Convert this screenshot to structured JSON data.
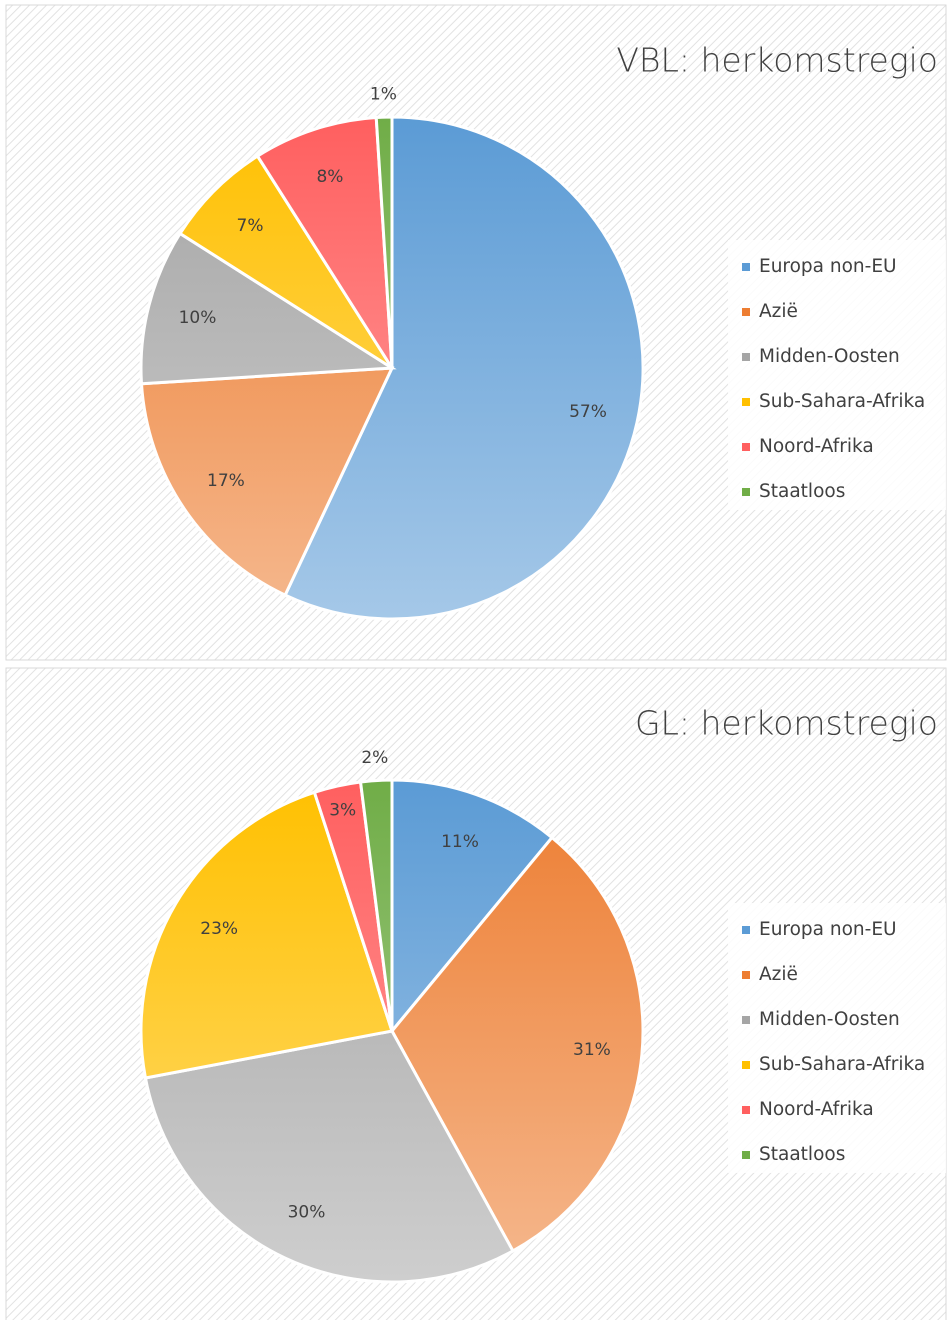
{
  "chart_data": [
    {
      "type": "pie",
      "title": "VBL: herkomstregio",
      "categories": [
        "Europa non-EU",
        "Azië",
        "Midden-Oosten",
        "Sub-Sahara-Afrika",
        "Noord-Afrika",
        "Staatloos"
      ],
      "values": [
        57,
        17,
        10,
        7,
        8,
        1
      ],
      "value_labels": [
        "57%",
        "17%",
        "10%",
        "7%",
        "8%",
        "1%"
      ],
      "colors": [
        "#5b9bd5",
        "#ed7d31",
        "#a5a5a5",
        "#ffc000",
        "#ff5f5f",
        "#70ad47"
      ],
      "legend": "right"
    },
    {
      "type": "pie",
      "title": "GL: herkomstregio",
      "categories": [
        "Europa non-EU",
        "Azië",
        "Midden-Oosten",
        "Sub-Sahara-Afrika",
        "Noord-Afrika",
        "Staatloos"
      ],
      "values": [
        11,
        31,
        30,
        23,
        3,
        2
      ],
      "value_labels": [
        "11%",
        "31%",
        "30%",
        "23%",
        "3%",
        "2%"
      ],
      "colors": [
        "#5b9bd5",
        "#ed7d31",
        "#a5a5a5",
        "#ffc000",
        "#ff5f5f",
        "#70ad47"
      ],
      "legend": "right"
    }
  ]
}
